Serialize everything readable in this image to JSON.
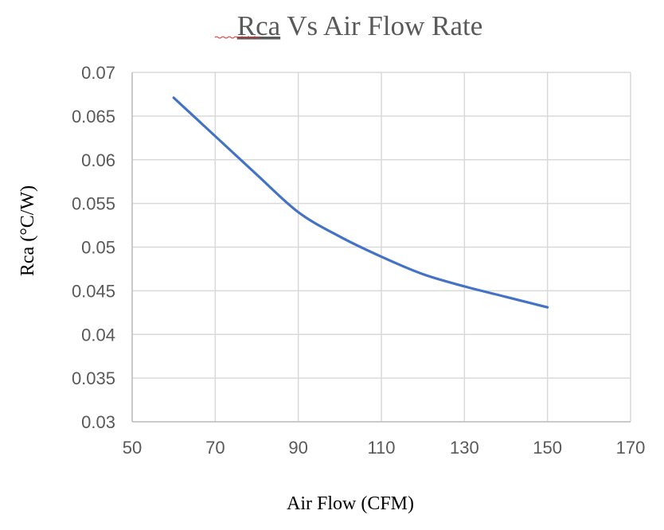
{
  "chart_data": {
    "type": "line",
    "title_word_1": "Rca",
    "title_rest": " Vs Air Flow Rate",
    "xlabel": "Air Flow (CFM)",
    "ylabel": "Rca (°C/W)",
    "xlim": [
      50,
      170
    ],
    "ylim": [
      0.03,
      0.07
    ],
    "xticks": [
      50,
      70,
      90,
      110,
      130,
      150,
      170
    ],
    "yticks": [
      0.03,
      0.035,
      0.04,
      0.045,
      0.05,
      0.055,
      0.06,
      0.065,
      0.07
    ],
    "grid": true,
    "legend": "none",
    "series": [
      {
        "name": "Rca",
        "color": "#4472C4",
        "smooth": true,
        "x": [
          60,
          70,
          80,
          90,
          100,
          110,
          120,
          130,
          140,
          150
        ],
        "y": [
          0.0671,
          0.0627,
          0.0583,
          0.054,
          0.0512,
          0.0489,
          0.0469,
          0.0455,
          0.0443,
          0.0431
        ]
      }
    ]
  }
}
